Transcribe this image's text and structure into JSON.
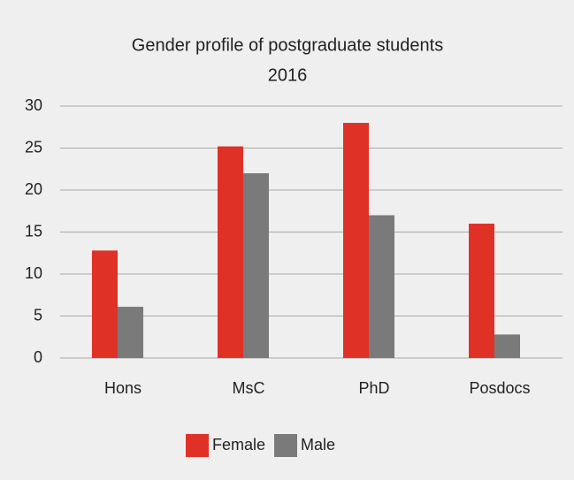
{
  "chart_data": {
    "type": "bar",
    "title": "Gender profile of postgraduate students",
    "subtitle": "2016",
    "categories": [
      "Hons",
      "MsC",
      "PhD",
      "Posdocs"
    ],
    "series": [
      {
        "name": "Female",
        "color": "#e03127",
        "values": [
          12.8,
          25.2,
          28,
          16
        ]
      },
      {
        "name": "Male",
        "color": "#7a7a7a",
        "values": [
          6.1,
          22,
          17,
          2.8
        ]
      }
    ],
    "ylim": [
      0,
      30
    ],
    "yticks": [
      0,
      5,
      10,
      15,
      20,
      25,
      30
    ],
    "grid": true,
    "legend": "bottom"
  }
}
